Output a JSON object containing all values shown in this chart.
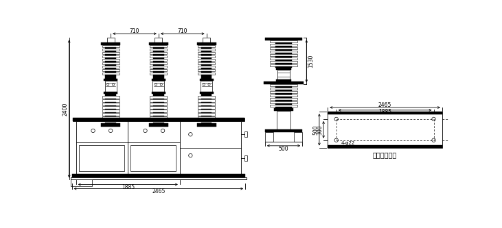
{
  "install_label": "安装孔示意图",
  "dim_2400": "2400",
  "dim_1530": "1530",
  "dim_710a": "710",
  "dim_710b": "710",
  "dim_1885a": "1885",
  "dim_2465a": "2465",
  "dim_500a": "500",
  "dim_2465b": "2465",
  "dim_1885b": "1885",
  "dim_500b": "500",
  "dim_300": "300",
  "dim_hole": "4-φ22",
  "line_color": "#000000",
  "bg_color": "#ffffff",
  "fig_width": 7.31,
  "fig_height": 3.33
}
